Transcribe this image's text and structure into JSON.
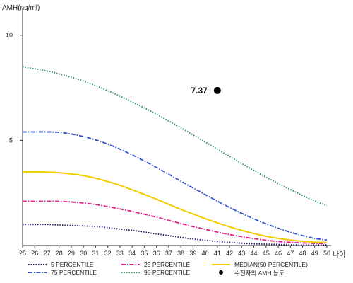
{
  "chart_data": {
    "type": "line",
    "ylabel": "AMH(ng/ml)",
    "xlabel": "나이",
    "xlim": [
      25,
      50
    ],
    "ylim": [
      0,
      11
    ],
    "x": [
      25,
      26,
      27,
      28,
      29,
      30,
      31,
      32,
      33,
      34,
      35,
      36,
      37,
      38,
      39,
      40,
      41,
      42,
      43,
      44,
      45,
      46,
      47,
      48,
      49,
      50
    ],
    "x_ticks": [
      "25",
      "26",
      "27",
      "28",
      "29",
      "30",
      "31",
      "32",
      "33",
      "34",
      "35",
      "36",
      "37",
      "38",
      "39",
      "40",
      "41",
      "42",
      "43",
      "44",
      "45",
      "46",
      "47",
      "48",
      "49",
      "50"
    ],
    "y_ticks": [
      "5",
      "10"
    ],
    "y_tick_values": [
      5,
      10
    ],
    "series": [
      {
        "name": "5 PERCENTILE",
        "color": "#1a1a66",
        "dash": "dotted",
        "values": [
          1.0,
          1.0,
          1.0,
          0.98,
          0.95,
          0.93,
          0.9,
          0.85,
          0.78,
          0.72,
          0.64,
          0.55,
          0.47,
          0.39,
          0.31,
          0.25,
          0.19,
          0.15,
          0.11,
          0.08,
          0.06,
          0.05,
          0.04,
          0.03,
          0.03,
          0.03
        ]
      },
      {
        "name": "25 PERCENTILE",
        "color": "#e0208a",
        "dash": "dashdot",
        "values": [
          2.1,
          2.1,
          2.1,
          2.1,
          2.07,
          2.02,
          1.95,
          1.85,
          1.74,
          1.62,
          1.49,
          1.35,
          1.2,
          1.05,
          0.9,
          0.77,
          0.64,
          0.52,
          0.42,
          0.33,
          0.25,
          0.19,
          0.15,
          0.12,
          0.1,
          0.09
        ]
      },
      {
        "name": "MEDIAN(50 PERCENTILE)",
        "color": "#f2cc00",
        "dash": "solid",
        "values": [
          3.5,
          3.5,
          3.49,
          3.46,
          3.4,
          3.32,
          3.2,
          3.04,
          2.86,
          2.65,
          2.43,
          2.2,
          1.96,
          1.72,
          1.5,
          1.28,
          1.08,
          0.89,
          0.72,
          0.57,
          0.44,
          0.34,
          0.26,
          0.2,
          0.16,
          0.14
        ]
      },
      {
        "name": "75 PERCENTILE",
        "color": "#3355cc",
        "dash": "dashdot",
        "values": [
          5.4,
          5.4,
          5.4,
          5.38,
          5.3,
          5.18,
          5.02,
          4.82,
          4.58,
          4.31,
          4.02,
          3.71,
          3.39,
          3.06,
          2.74,
          2.42,
          2.11,
          1.81,
          1.53,
          1.27,
          1.03,
          0.82,
          0.63,
          0.47,
          0.34,
          0.26
        ]
      },
      {
        "name": "95 PERCENTILE",
        "color": "#2e8b57",
        "dash": "dotted",
        "values": [
          8.5,
          8.4,
          8.3,
          8.16,
          8.0,
          7.82,
          7.6,
          7.36,
          7.1,
          6.82,
          6.54,
          6.24,
          5.92,
          5.6,
          5.26,
          4.92,
          4.58,
          4.24,
          3.9,
          3.57,
          3.25,
          2.95,
          2.66,
          2.38,
          2.12,
          1.9
        ]
      }
    ],
    "point": {
      "name": "수진자의 AMH 농도",
      "x": 41,
      "y": 7.37,
      "label": "7.37",
      "color": "#000000"
    },
    "legend_position": "bottom",
    "grid": false
  }
}
